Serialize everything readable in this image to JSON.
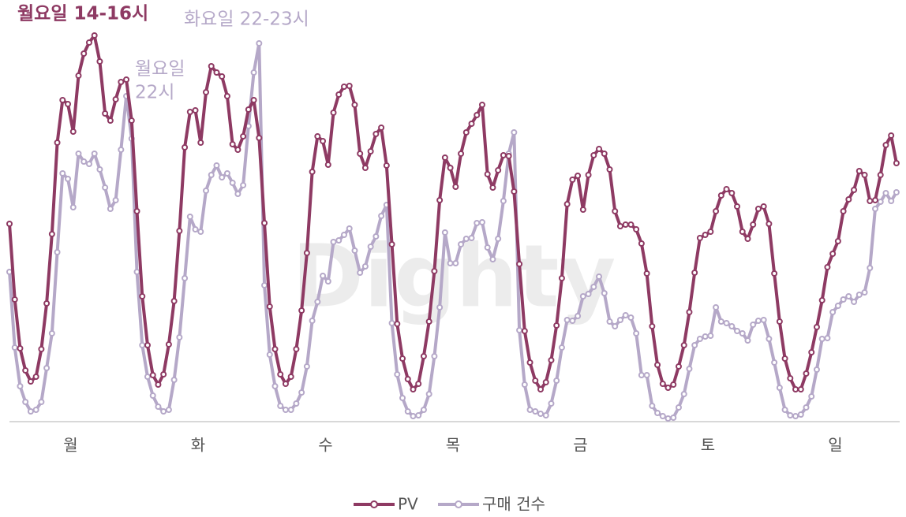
{
  "chart_data": {
    "type": "line",
    "watermark": "Dighty",
    "categories": [
      null,
      null,
      null,
      null,
      null,
      null,
      null,
      null,
      null,
      null,
      null,
      null,
      "월",
      null,
      null,
      null,
      null,
      null,
      null,
      null,
      null,
      null,
      null,
      null,
      null,
      null,
      null,
      null,
      null,
      null,
      null,
      null,
      null,
      null,
      null,
      null,
      "화",
      null,
      null,
      null,
      null,
      null,
      null,
      null,
      null,
      null,
      null,
      null,
      null,
      null,
      null,
      null,
      null,
      null,
      null,
      null,
      null,
      null,
      null,
      null,
      "수",
      null,
      null,
      null,
      null,
      null,
      null,
      null,
      null,
      null,
      null,
      null,
      null,
      null,
      null,
      null,
      null,
      null,
      null,
      null,
      null,
      null,
      null,
      null,
      "목",
      null,
      null,
      null,
      null,
      null,
      null,
      null,
      null,
      null,
      null,
      null,
      null,
      null,
      null,
      null,
      null,
      null,
      null,
      null,
      null,
      null,
      null,
      null,
      "금",
      null,
      null,
      null,
      null,
      null,
      null,
      null,
      null,
      null,
      null,
      null,
      null,
      null,
      null,
      null,
      null,
      null,
      null,
      null,
      null,
      null,
      null,
      null,
      "토",
      null,
      null,
      null,
      null,
      null,
      null,
      null,
      null,
      null,
      null,
      null,
      null,
      null,
      null,
      null,
      null,
      null,
      null,
      null,
      null,
      null,
      null,
      null,
      "일",
      null,
      null,
      null,
      null,
      null,
      null,
      null,
      null,
      null,
      null,
      null
    ],
    "ylim": [
      0,
      500
    ],
    "series": [
      {
        "name": "PV",
        "color": "#8e3a63",
        "values": [
          251,
          155,
          93,
          65,
          51,
          57,
          92,
          150,
          238,
          354,
          408,
          403,
          368,
          439,
          467,
          481,
          490,
          457,
          391,
          382,
          409,
          431,
          434,
          382,
          267,
          159,
          97,
          59,
          47,
          60,
          98,
          153,
          242,
          348,
          393,
          395,
          354,
          418,
          451,
          443,
          438,
          413,
          352,
          345,
          362,
          396,
          408,
          360,
          252,
          146,
          92,
          60,
          48,
          57,
          92,
          141,
          214,
          317,
          362,
          356,
          326,
          392,
          415,
          425,
          426,
          402,
          340,
          322,
          343,
          365,
          373,
          325,
          225,
          124,
          80,
          54,
          41,
          48,
          83,
          127,
          191,
          281,
          335,
          322,
          298,
          340,
          367,
          378,
          389,
          402,
          314,
          297,
          319,
          338,
          337,
          292,
          200,
          115,
          75,
          52,
          41,
          50,
          78,
          122,
          182,
          276,
          307,
          312,
          269,
          313,
          338,
          346,
          340,
          320,
          267,
          248,
          250,
          250,
          244,
          226,
          188,
          121,
          72,
          48,
          43,
          47,
          70,
          97,
          139,
          189,
          233,
          237,
          241,
          267,
          287,
          295,
          290,
          273,
          241,
          232,
          250,
          270,
          273,
          251,
          188,
          127,
          80,
          55,
          41,
          41,
          61,
          88,
          120,
          154,
          196,
          213,
          229,
          267,
          282,
          294,
          318,
          313,
          280,
          281,
          313,
          351,
          363,
          328
        ]
      },
      {
        "name": "구매 건수",
        "color": "#b5a8c8",
        "values": [
          190,
          94,
          45,
          25,
          13,
          15,
          25,
          68,
          112,
          215,
          315,
          308,
          272,
          340,
          330,
          327,
          340,
          320,
          297,
          270,
          281,
          345,
          413,
          359,
          190,
          97,
          57,
          33,
          19,
          13,
          15,
          53,
          107,
          182,
          260,
          244,
          241,
          293,
          313,
          325,
          310,
          315,
          303,
          289,
          300,
          375,
          443,
          480,
          173,
          85,
          45,
          20,
          15,
          15,
          23,
          37,
          70,
          128,
          152,
          185,
          178,
          228,
          230,
          237,
          245,
          217,
          189,
          197,
          222,
          235,
          261,
          275,
          125,
          60,
          30,
          13,
          7,
          8,
          15,
          35,
          83,
          145,
          240,
          201,
          201,
          225,
          232,
          233,
          252,
          253,
          221,
          206,
          232,
          280,
          340,
          367,
          116,
          47,
          15,
          13,
          10,
          8,
          23,
          52,
          94,
          129,
          128,
          134,
          159,
          162,
          171,
          184,
          163,
          127,
          121,
          129,
          135,
          132,
          112,
          59,
          59,
          20,
          11,
          7,
          4,
          5,
          18,
          35,
          67,
          97,
          105,
          108,
          109,
          145,
          127,
          125,
          121,
          115,
          112,
          103,
          123,
          128,
          129,
          105,
          75,
          43,
          15,
          8,
          7,
          9,
          18,
          32,
          66,
          105,
          106,
          139,
          147,
          155,
          159,
          152,
          161,
          164,
          195,
          270,
          279,
          290,
          280,
          291
        ]
      }
    ],
    "annotations": [
      {
        "text": "월요일 14-16시",
        "color": "#8e3a63"
      },
      {
        "text": "화요일 22-23시",
        "color": "#b5a8c8"
      },
      {
        "text": "월요일",
        "color": "#b5a8c8"
      },
      {
        "text": "22시",
        "color": "#b5a8c8"
      }
    ]
  }
}
